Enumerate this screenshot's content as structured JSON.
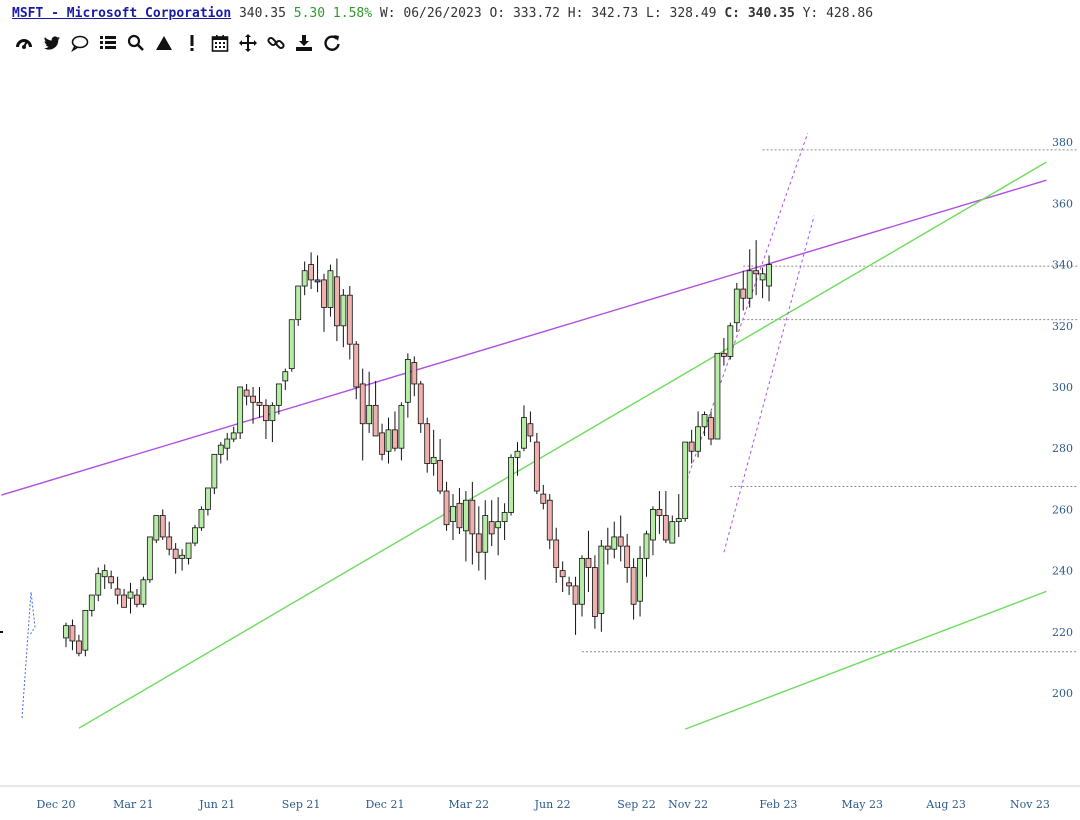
{
  "header": {
    "symbol": "MSFT - Microsoft Corporation",
    "last": "340.35",
    "change": "5.30",
    "change_pct": "1.58%",
    "period_label": "W:",
    "date": "06/26/2023",
    "open_label": "O:",
    "open": "333.72",
    "high_label": "H:",
    "high": "342.73",
    "low_label": "L:",
    "low": "328.49",
    "close_label": "C:",
    "close": "340.35",
    "year_label": "Y:",
    "year_high": "428.86"
  },
  "toolbar": {
    "icons": [
      "dashboard-icon",
      "twitter-icon",
      "comment-icon",
      "list-icon",
      "search-icon",
      "triangle-icon",
      "exclamation-icon",
      "calendar-icon",
      "move-icon",
      "link-icon",
      "download-icon",
      "refresh-icon"
    ]
  },
  "colors": {
    "up": "#b6eca6",
    "down": "#eeb1ad",
    "neutral": "#7b7bd6",
    "purple_line": "#b04fe0",
    "green_line": "#6cdc5c",
    "axis_text": "#2b5a8a"
  },
  "chart_data": {
    "type": "candlestick",
    "title": "MSFT - Microsoft Corporation",
    "ylim": [
      186,
      384
    ],
    "y_ticks": [
      200,
      220,
      240,
      260,
      280,
      300,
      320,
      340,
      360,
      380
    ],
    "x_ticks": [
      "Dec 20",
      "Mar 21",
      "Jun 21",
      "Sep 21",
      "Dec 21",
      "Mar 22",
      "Jun 22",
      "Sep 22",
      "Nov 22",
      "Feb 23",
      "May 23",
      "Aug 23",
      "Nov 23"
    ],
    "x_tick_weeks": [
      0,
      12,
      25,
      38,
      51,
      64,
      77,
      90,
      98,
      112,
      125,
      138,
      151
    ],
    "first_week": "2020-12-28",
    "candles": [
      [
        0,
        218,
        223,
        215,
        222
      ],
      [
        1,
        222,
        224,
        214,
        217
      ],
      [
        2,
        217,
        219,
        212,
        213
      ],
      [
        3,
        214,
        227,
        212,
        227
      ],
      [
        4,
        227,
        232,
        225,
        232
      ],
      [
        5,
        232,
        241,
        230,
        239
      ],
      [
        6,
        238,
        242,
        234,
        240
      ],
      [
        7,
        238,
        240,
        234,
        236
      ],
      [
        8,
        234,
        238,
        229,
        232
      ],
      [
        9,
        232,
        234,
        228,
        228
      ],
      [
        10,
        231,
        236,
        226,
        233
      ],
      [
        11,
        232,
        234,
        228,
        229
      ],
      [
        12,
        229,
        238,
        228,
        237
      ],
      [
        13,
        237,
        251,
        236,
        251
      ],
      [
        14,
        250,
        258,
        249,
        258
      ],
      [
        15,
        258,
        260,
        250,
        251
      ],
      [
        16,
        251,
        256,
        245,
        247
      ],
      [
        17,
        247,
        249,
        239,
        244
      ],
      [
        18,
        244,
        247,
        240,
        245
      ],
      [
        19,
        244,
        249,
        242,
        249
      ],
      [
        20,
        249,
        255,
        248,
        254
      ],
      [
        21,
        254,
        261,
        253,
        260
      ],
      [
        22,
        260,
        267,
        258,
        267
      ],
      [
        23,
        267,
        278,
        265,
        278
      ],
      [
        24,
        278,
        282,
        275,
        281
      ],
      [
        25,
        280,
        285,
        276,
        283
      ],
      [
        26,
        283,
        287,
        282,
        285
      ],
      [
        27,
        285,
        300,
        283,
        300
      ],
      [
        28,
        299,
        301,
        294,
        297
      ],
      [
        29,
        297,
        300,
        288,
        295
      ],
      [
        30,
        295,
        300,
        290,
        294
      ],
      [
        31,
        294,
        296,
        283,
        289
      ],
      [
        32,
        289,
        295,
        282,
        294
      ],
      [
        33,
        294,
        301,
        291,
        301
      ],
      [
        34,
        302,
        306,
        299,
        305
      ],
      [
        35,
        306,
        322,
        305,
        322
      ],
      [
        36,
        322,
        333,
        320,
        333
      ],
      [
        37,
        333,
        341,
        330,
        338
      ],
      [
        38,
        340,
        344,
        332,
        335
      ],
      [
        39,
        335,
        343,
        331,
        335
      ],
      [
        40,
        335,
        337,
        318,
        326
      ],
      [
        41,
        326,
        340,
        323,
        338
      ],
      [
        42,
        336,
        342,
        315,
        320
      ],
      [
        43,
        320,
        332,
        313,
        330
      ],
      [
        44,
        330,
        333,
        309,
        314
      ],
      [
        45,
        314,
        315,
        296,
        300
      ],
      [
        46,
        301,
        306,
        276,
        288
      ],
      [
        47,
        288,
        305,
        285,
        294
      ],
      [
        48,
        294,
        302,
        284,
        284
      ],
      [
        49,
        285,
        288,
        276,
        278
      ],
      [
        50,
        279,
        290,
        275,
        286
      ],
      [
        51,
        286,
        292,
        279,
        280
      ],
      [
        52,
        280,
        295,
        276,
        294
      ],
      [
        53,
        295,
        311,
        290,
        309
      ],
      [
        54,
        308,
        310,
        297,
        301
      ],
      [
        55,
        301,
        302,
        285,
        288
      ],
      [
        56,
        288,
        290,
        272,
        275
      ],
      [
        57,
        275,
        286,
        271,
        277
      ],
      [
        58,
        276,
        283,
        265,
        266
      ],
      [
        59,
        266,
        269,
        253,
        255
      ],
      [
        60,
        256,
        265,
        250,
        261
      ],
      [
        61,
        262,
        267,
        252,
        254
      ],
      [
        62,
        253,
        266,
        243,
        263
      ],
      [
        63,
        263,
        269,
        242,
        252
      ],
      [
        64,
        252,
        261,
        240,
        246
      ],
      [
        65,
        246,
        263,
        237,
        258
      ],
      [
        66,
        256,
        263,
        248,
        252
      ],
      [
        67,
        254,
        264,
        245,
        256
      ],
      [
        68,
        256,
        262,
        250,
        259
      ],
      [
        69,
        259,
        278,
        258,
        277
      ],
      [
        70,
        277,
        282,
        271,
        279
      ],
      [
        71,
        280,
        294,
        279,
        290
      ],
      [
        72,
        288,
        292,
        282,
        284
      ],
      [
        73,
        282,
        285,
        265,
        266
      ],
      [
        74,
        265,
        268,
        260,
        262
      ],
      [
        75,
        263,
        265,
        247,
        250
      ],
      [
        76,
        250,
        254,
        236,
        241
      ],
      [
        77,
        240,
        243,
        233,
        238
      ],
      [
        78,
        236,
        238,
        232,
        235
      ],
      [
        79,
        235,
        238,
        219,
        229
      ],
      [
        80,
        229,
        245,
        225,
        244
      ],
      [
        81,
        244,
        253,
        233,
        241
      ],
      [
        82,
        241,
        245,
        221,
        225
      ],
      [
        83,
        226,
        250,
        220,
        248
      ],
      [
        84,
        248,
        254,
        242,
        247
      ],
      [
        85,
        247,
        256,
        244,
        251
      ],
      [
        86,
        251,
        258,
        243,
        248
      ],
      [
        87,
        248,
        252,
        236,
        241
      ],
      [
        88,
        241,
        244,
        224,
        229
      ],
      [
        89,
        230,
        248,
        225,
        244
      ],
      [
        90,
        244,
        253,
        238,
        252
      ],
      [
        91,
        250,
        261,
        245,
        260
      ],
      [
        92,
        260,
        266,
        252,
        258
      ],
      [
        93,
        258,
        266,
        249,
        250
      ],
      [
        94,
        249,
        258,
        249,
        256
      ],
      [
        95,
        256,
        265,
        251,
        257
      ],
      [
        96,
        257,
        282,
        256,
        282
      ],
      [
        97,
        282,
        286,
        275,
        279
      ],
      [
        98,
        279,
        292,
        277,
        287
      ],
      [
        99,
        287,
        292,
        284,
        291
      ],
      [
        100,
        290,
        292,
        281,
        283
      ],
      [
        101,
        283,
        311,
        283,
        311
      ],
      [
        102,
        311,
        316,
        307,
        310
      ],
      [
        103,
        310,
        321,
        309,
        320
      ],
      [
        104,
        321,
        334,
        318,
        332
      ],
      [
        105,
        332,
        338,
        325,
        329
      ],
      [
        106,
        329,
        345,
        326,
        338
      ],
      [
        107,
        338,
        348,
        330,
        337
      ],
      [
        108,
        335,
        339,
        329,
        337
      ],
      [
        109,
        333,
        343,
        328,
        340
      ]
    ],
    "trendlines": [
      {
        "color": "purple",
        "style": "solid",
        "points": [
          [
            -10,
            264.7
          ],
          [
            152,
            367.6
          ]
        ]
      },
      {
        "color": "green",
        "style": "solid",
        "points": [
          [
            2,
            188.5
          ],
          [
            152,
            373.5
          ]
        ]
      },
      {
        "color": "green",
        "style": "solid",
        "points": [
          [
            96,
            188.2
          ],
          [
            152,
            233.2
          ]
        ]
      },
      {
        "color": "purple",
        "style": "dotted",
        "points": [
          [
            96,
            268
          ],
          [
            115,
            383
          ]
        ]
      },
      {
        "color": "purple",
        "style": "dotted",
        "points": [
          [
            102,
            246
          ],
          [
            116,
            356
          ]
        ]
      }
    ],
    "levels": [
      {
        "y": 377.5,
        "from_week": 108
      },
      {
        "y": 339.5,
        "from_week": 105
      },
      {
        "y": 322,
        "from_week": 105
      },
      {
        "y": 267.5,
        "from_week": 103
      },
      {
        "y": 213.5,
        "from_week": 80
      }
    ]
  }
}
